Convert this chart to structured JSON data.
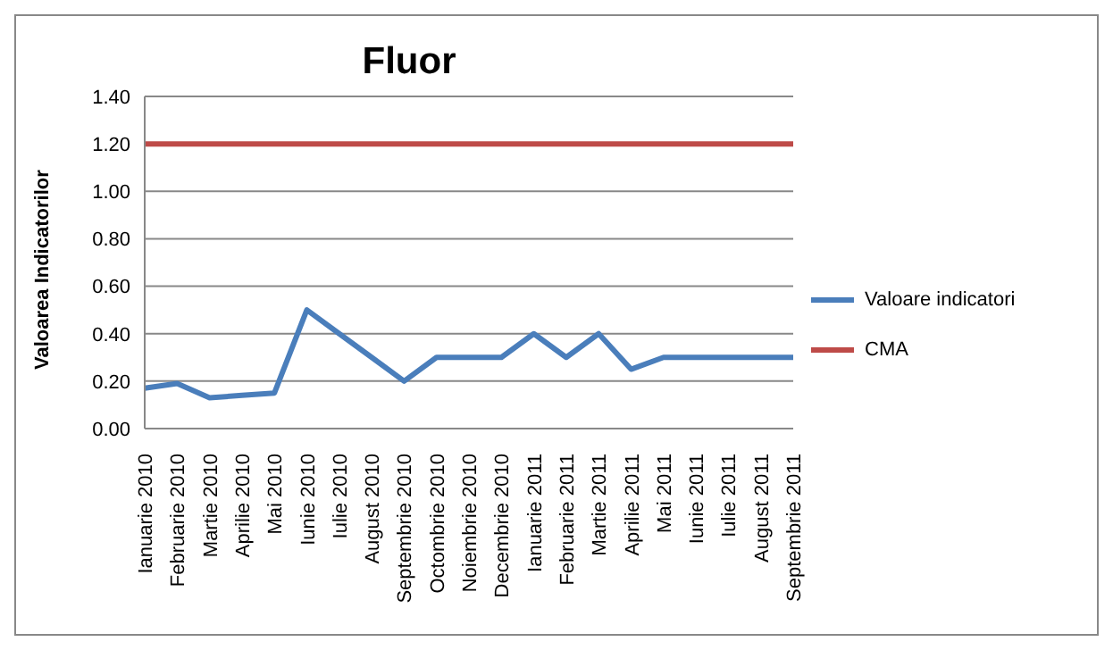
{
  "chart_data": {
    "type": "line",
    "title": "Fluor",
    "ylabel": "Valoarea Indicatorilor",
    "categories": [
      "Ianuarie 2010",
      "Februarie 2010",
      "Martie 2010",
      "Aprilie 2010",
      "Mai 2010",
      "Iunie 2010",
      "Iulie 2010",
      "August 2010",
      "Septembrie 2010",
      "Octombrie 2010",
      "Noiembrie 2010",
      "Decembrie 2010",
      "Ianuarie 2011",
      "Februarie 2011",
      "Martie 2011",
      "Aprilie 2011",
      "Mai 2011",
      "Iunie 2011",
      "Iulie 2011",
      "August 2011",
      "Septembrie 2011"
    ],
    "series": [
      {
        "name": "Valoare indicatori",
        "color": "#4a7ebb",
        "values": [
          0.17,
          0.19,
          0.13,
          0.14,
          0.15,
          0.5,
          0.4,
          0.3,
          0.2,
          0.3,
          0.3,
          0.3,
          0.4,
          0.3,
          0.4,
          0.25,
          0.3,
          0.3,
          0.3,
          0.3,
          0.3
        ]
      },
      {
        "name": "CMA",
        "color": "#be4b48",
        "values": [
          1.2,
          1.2,
          1.2,
          1.2,
          1.2,
          1.2,
          1.2,
          1.2,
          1.2,
          1.2,
          1.2,
          1.2,
          1.2,
          1.2,
          1.2,
          1.2,
          1.2,
          1.2,
          1.2,
          1.2,
          1.2
        ]
      }
    ],
    "ylim": [
      0,
      1.4
    ],
    "yticks": [
      {
        "value": 0,
        "label": "0.00"
      },
      {
        "value": 0.2,
        "label": "0.20"
      },
      {
        "value": 0.4,
        "label": "0.40"
      },
      {
        "value": 0.6,
        "label": "0.60"
      },
      {
        "value": 0.8,
        "label": "0.80"
      },
      {
        "value": 1,
        "label": "1.00"
      },
      {
        "value": 1.2,
        "label": "1.20"
      },
      {
        "value": 1.4,
        "label": "1.40"
      }
    ],
    "grid": "y",
    "legend": "right",
    "marker": "none",
    "line_style": "solid"
  }
}
